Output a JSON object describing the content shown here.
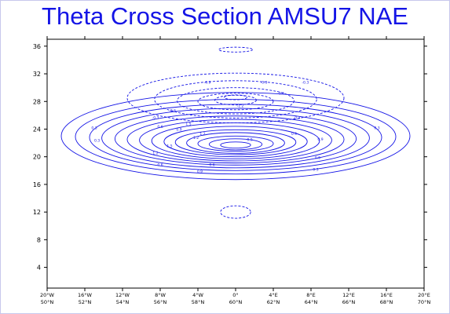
{
  "chart_data": {
    "type": "contour",
    "title": "Theta Cross Section AMSU7 NAE",
    "xlabel": "",
    "ylabel": "",
    "y_ticks": [
      "4",
      "8",
      "12",
      "16",
      "20",
      "24",
      "28",
      "32",
      "36"
    ],
    "ylim": [
      1,
      37
    ],
    "x_ticks_lon": [
      "20°W",
      "16°W",
      "12°W",
      "8°W",
      "4°W",
      "0°",
      "4°E",
      "8°E",
      "12°E",
      "16°E",
      "20°E"
    ],
    "x_ticks_lat": [
      "50°N",
      "52°N",
      "54°N",
      "56°N",
      "58°N",
      "60°N",
      "62°N",
      "64°N",
      "66°N",
      "68°N",
      "70°N"
    ],
    "xlim_lon": [
      -20,
      20
    ],
    "contour_color": "#1414e6",
    "lower_centre": {
      "lon": 0,
      "level": 22
    },
    "contour_labels": [
      "0.3",
      "0.6",
      "0.9",
      "1.2",
      "1.5",
      "0.3",
      "0.6",
      "0.9",
      "1.2",
      "0.9",
      "0.6",
      "0.3",
      "0.3",
      "0.6",
      "0.9",
      "1.2",
      "1.5",
      "0.9",
      "-0.3",
      "-0.6",
      "-0.9",
      "-1.2",
      "-0.3",
      "-0.3",
      "-0.6",
      "-0.3"
    ],
    "dashed_note": "negative contours dashed"
  }
}
